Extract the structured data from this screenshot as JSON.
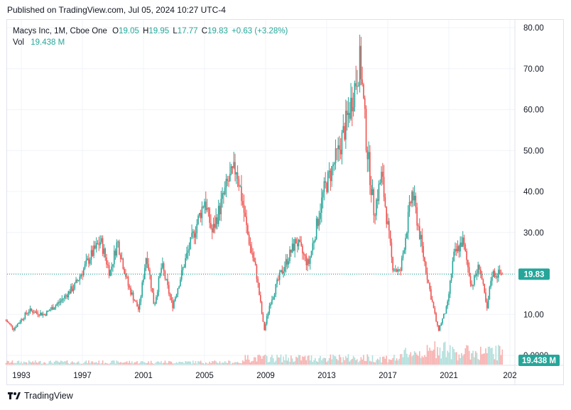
{
  "header": {
    "published": "Published on TradingView.com, Jul 05, 2024 10:27 UTC-4"
  },
  "legend": {
    "symbol": "Macys Inc, 1M, Cboe One",
    "o_label": "O",
    "o_value": "19.05",
    "h_label": "H",
    "h_value": "19.95",
    "l_label": "L",
    "l_value": "17.77",
    "c_label": "C",
    "c_value": "19.83",
    "change": "+0.63 (+3.28%)",
    "vol_label": "Vol",
    "vol_value": "19.438 M"
  },
  "footer": {
    "brand": "TradingView"
  },
  "colors": {
    "up": "#26a69a",
    "down": "#ef5350",
    "up_volume": "#b2dfdb",
    "down_volume": "#f7b2b0",
    "grid": "#f0f3fa",
    "price_label": "#26a69a"
  },
  "chart_data": {
    "type": "candlestick",
    "title": "Macys Inc, 1M, Cboe One",
    "x_ticks": [
      "1993",
      "1997",
      "2001",
      "2005",
      "2009",
      "2013",
      "2017",
      "2021",
      "202"
    ],
    "y_ticks": [
      "80.00",
      "70.00",
      "60.00",
      "50.00",
      "40.00",
      "30.00",
      "20.00",
      "10.00",
      "0.0000"
    ],
    "ylim": [
      0,
      80
    ],
    "last_price": 19.83,
    "last_price_label": "19.83",
    "last_volume_label": "19.438 M",
    "grid": true,
    "anchors": [
      [
        1992.0,
        8.5
      ],
      [
        1992.5,
        6.5
      ],
      [
        1993.5,
        11
      ],
      [
        1994.5,
        10
      ],
      [
        1995.5,
        13
      ],
      [
        1996.5,
        17
      ],
      [
        1997.5,
        24
      ],
      [
        1998.2,
        28
      ],
      [
        1998.8,
        20
      ],
      [
        1999.3,
        28
      ],
      [
        2000.0,
        17
      ],
      [
        2000.7,
        11
      ],
      [
        2001.2,
        25
      ],
      [
        2001.7,
        12
      ],
      [
        2002.2,
        22
      ],
      [
        2002.9,
        12
      ],
      [
        2003.8,
        24
      ],
      [
        2005.0,
        38
      ],
      [
        2005.5,
        30
      ],
      [
        2006.5,
        42
      ],
      [
        2007.1,
        46
      ],
      [
        2007.8,
        30
      ],
      [
        2008.4,
        20
      ],
      [
        2008.9,
        6
      ],
      [
        2009.3,
        13
      ],
      [
        2010.0,
        20
      ],
      [
        2011.0,
        28
      ],
      [
        2011.8,
        22
      ],
      [
        2012.8,
        40
      ],
      [
        2013.8,
        50
      ],
      [
        2014.5,
        60
      ],
      [
        2015.2,
        72
      ],
      [
        2015.6,
        52
      ],
      [
        2016.1,
        35
      ],
      [
        2016.6,
        44
      ],
      [
        2017.3,
        22
      ],
      [
        2017.8,
        20
      ],
      [
        2018.6,
        40
      ],
      [
        2019.3,
        25
      ],
      [
        2019.8,
        15
      ],
      [
        2020.3,
        6
      ],
      [
        2020.9,
        12
      ],
      [
        2021.3,
        24
      ],
      [
        2021.9,
        28
      ],
      [
        2022.5,
        17
      ],
      [
        2023.0,
        22
      ],
      [
        2023.5,
        11
      ],
      [
        2023.8,
        20
      ],
      [
        2024.5,
        19.83
      ]
    ],
    "volume_max": 1
  }
}
